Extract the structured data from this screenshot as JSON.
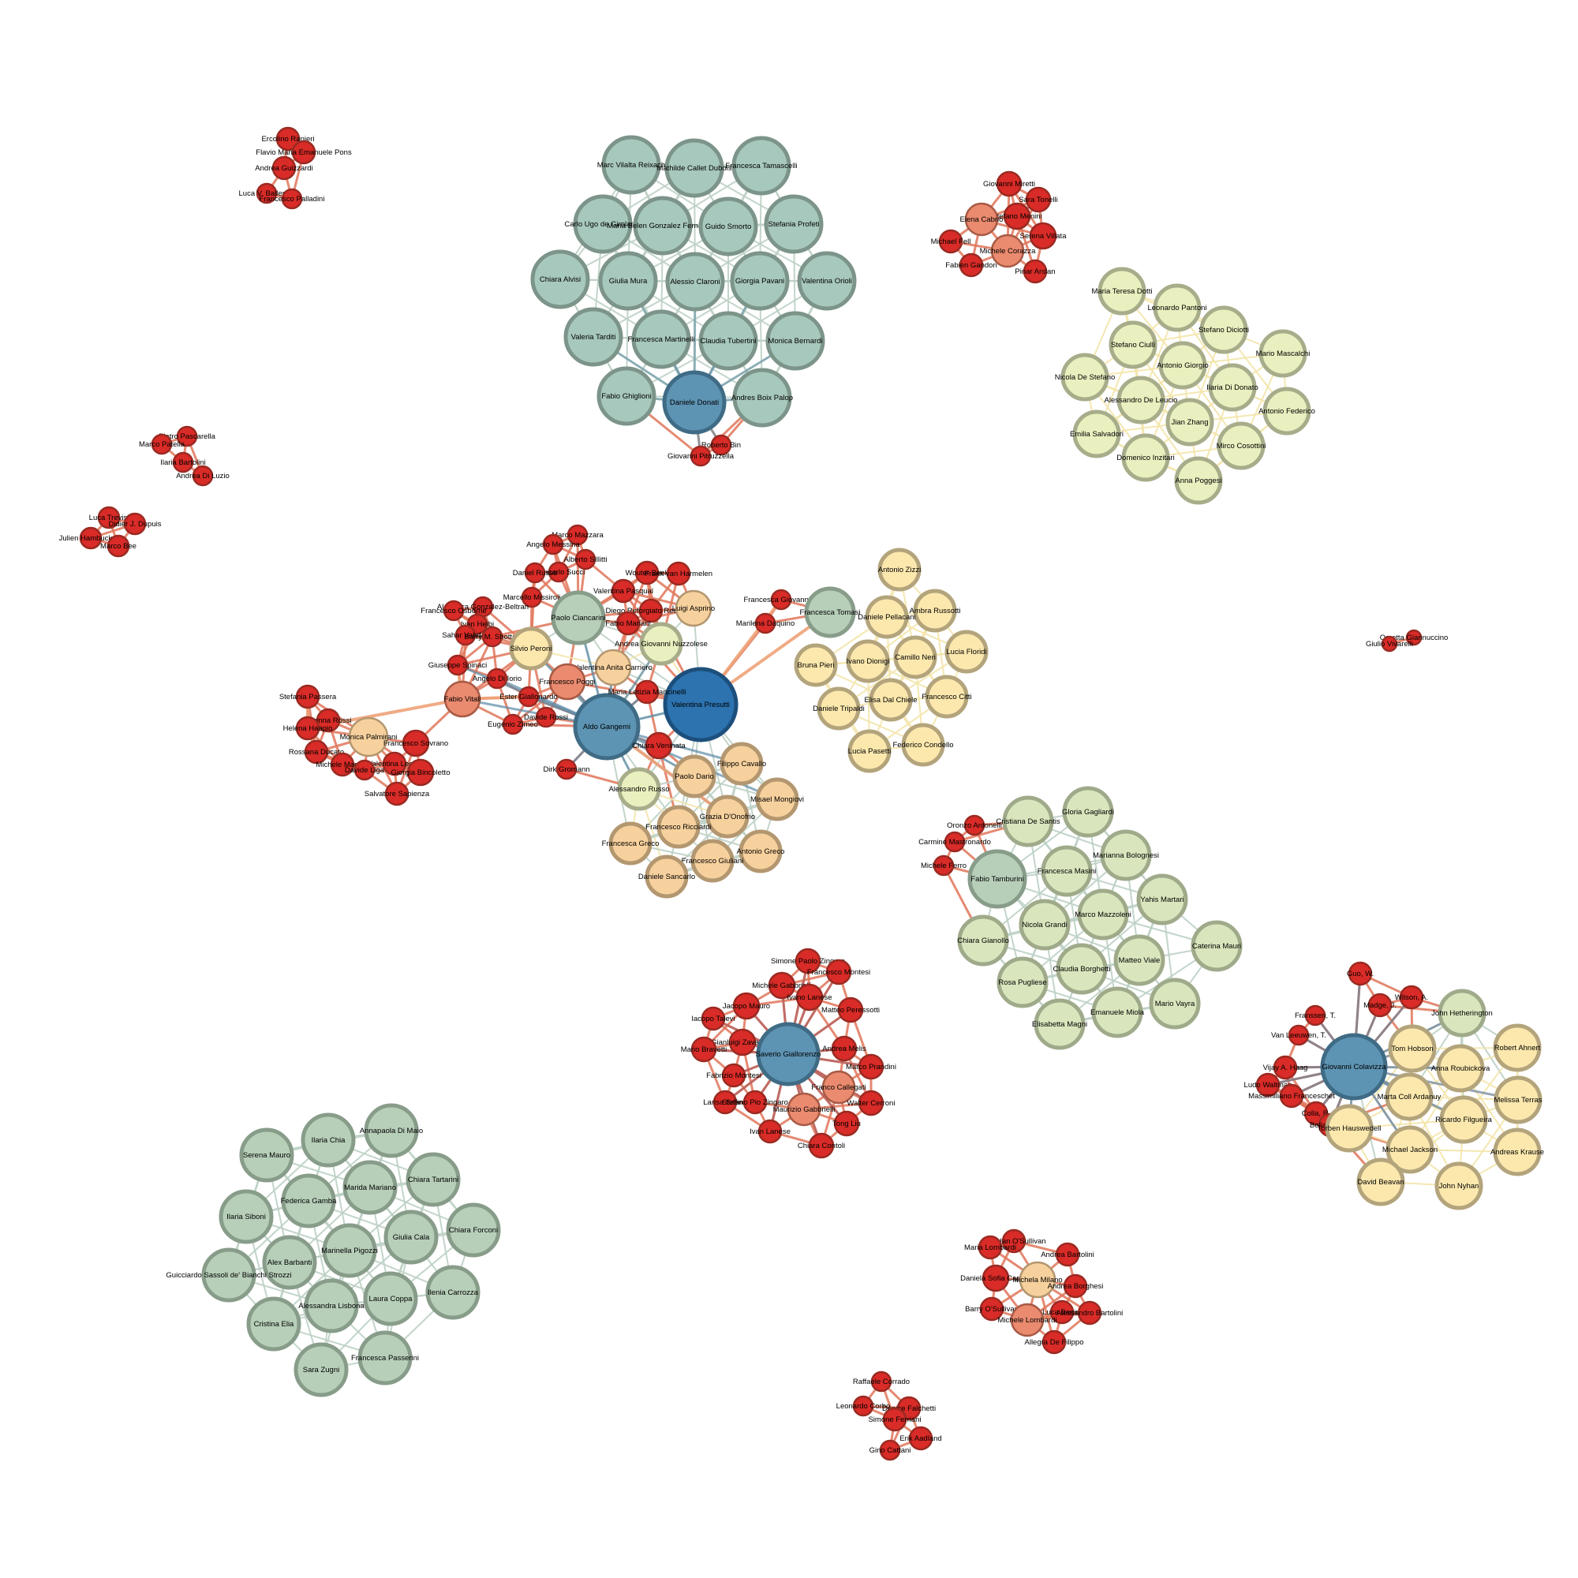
{
  "diagram": {
    "type": "co-authorship network",
    "palette": {
      "edge_default": "#cfdccf",
      "teal_fill": "#a7c8bc",
      "teal_stroke": "#7c9489",
      "sage_fill": "#b7cfb9",
      "sage_stroke": "#889c8a",
      "lime_fill": "#e9efbe",
      "lime_stroke": "#a7ad8a",
      "pale_green_fill": "#d9e6bd",
      "pale_green_stroke": "#9faa8a",
      "yellow_fill": "#fce8ad",
      "yellow_stroke": "#b3a47c",
      "peach_fill": "#f7d19d",
      "peach_stroke": "#b39770",
      "red_fill": "#d92b27",
      "red_stroke": "#9a2a22",
      "hub_fill": "#5d93b3",
      "hub_stroke": "#3f6b85",
      "hub_dark_fill": "#2c73b0",
      "hub_dark_stroke": "#1d4f7c"
    },
    "clusters": [
      {
        "id": "c1",
        "color": "red",
        "nodes": [
          [
            "Ercolino Ranieri"
          ],
          [
            "Flavio Maria Emanuele Pons"
          ],
          [
            "Andrea Guizzardi"
          ],
          [
            "Luca V. Ballestra"
          ],
          [
            "Francesco Palladini"
          ]
        ]
      },
      {
        "id": "c2",
        "color": "red",
        "nodes": [
          [
            "Pietro Pascarella"
          ],
          [
            "Marco Patella"
          ],
          [
            "Ilaria Bartolini"
          ],
          [
            "Andrea Di Luzio"
          ]
        ]
      },
      {
        "id": "c3",
        "color": "red",
        "nodes": [
          [
            "Luca Trevisi"
          ],
          [
            "Didier J. Dupuis"
          ],
          [
            "Julien Hambuckers"
          ],
          [
            "Marco Bee"
          ]
        ]
      },
      {
        "id": "c4",
        "color": "teal",
        "nodes": [
          [
            "Marc Vilalta Reixach"
          ],
          [
            "Mathilde Callet Dubois"
          ],
          [
            "Francesca Tamascelli"
          ],
          [
            "Carlo Ugo de Girolamo"
          ],
          [
            "Maria Belen Gonzalez Fernandez"
          ],
          [
            "Guido Smorto"
          ],
          [
            "Stefania Profeti"
          ],
          [
            "Chiara Alvisi"
          ],
          [
            "Giulia Mura"
          ],
          [
            "Alessio Claroni"
          ],
          [
            "Giorgia Pavani"
          ],
          [
            "Valentina Orioli"
          ],
          [
            "Valeria Tarditi"
          ],
          [
            "Francesca Martinelli"
          ],
          [
            "Claudia Tubertini"
          ],
          [
            "Monica Bernardi"
          ],
          [
            "Fabio Ghiglioni"
          ],
          [
            "Daniele Donati",
            "hub"
          ],
          [
            "Andres Boix Palop"
          ],
          [
            "Roberto Bin"
          ],
          [
            "Giovanni Pitruzzella"
          ]
        ]
      },
      {
        "id": "c5",
        "color": "red",
        "nodes": [
          [
            "Giovanni Miretti"
          ],
          [
            "Sara Tonelli"
          ],
          [
            "Stefano Menini"
          ],
          [
            "Elena Cabrio"
          ],
          [
            "Serena Villata"
          ],
          [
            "Michael Fell"
          ],
          [
            "Michele Corazza"
          ],
          [
            "Fabien Gandon"
          ],
          [
            "Pinar Arslan"
          ]
        ]
      },
      {
        "id": "c6",
        "color": "lime",
        "nodes": [
          [
            "Maria Teresa Dotti"
          ],
          [
            "Leonardo Pantoni"
          ],
          [
            "Stefano Diciotti"
          ],
          [
            "Stefano Ciulli"
          ],
          [
            "Mario Mascalchi"
          ],
          [
            "Nicola De Stefano"
          ],
          [
            "Antonio Giorgio"
          ],
          [
            "Ilaria Di Donato"
          ],
          [
            "Alessandro De Leucio"
          ],
          [
            "Antonio Federico"
          ],
          [
            "Emilia Salvadori"
          ],
          [
            "Jian Zhang"
          ],
          [
            "Mirco Cosottini"
          ],
          [
            "Domenico Inzitari"
          ],
          [
            "Anna Poggesi"
          ]
        ]
      },
      {
        "id": "c7",
        "color": "red",
        "nodes": [
          [
            "Orsetta Giannuccino"
          ],
          [
            "Giulio Vivarelli"
          ]
        ]
      },
      {
        "id": "c8",
        "color": "mixed",
        "nodes": [
          [
            "Marco Mazzara"
          ],
          [
            "Angelo Messina"
          ],
          [
            "Alberto Sillitti"
          ],
          [
            "Giancarlo Succi"
          ],
          [
            "Daniel Russo"
          ],
          [
            "Wouter Beek"
          ],
          [
            "Frank van Harmelen"
          ],
          [
            "Marcello Missiroli"
          ],
          [
            "Valentina Pasqual"
          ],
          [
            "Francesca Giovannetti"
          ],
          [
            "Alejandra Gonzalez-Beltran"
          ],
          [
            "Diego Reforgiato Recupero"
          ],
          [
            "Francesco Osborne"
          ],
          [
            "Ivan Heibi"
          ],
          [
            "Paolo Ciancarini"
          ],
          [
            "Fabio Mariani"
          ],
          [
            "Luigi Asprino"
          ],
          [
            "Marilena Daquino"
          ],
          [
            "Sahar Vahdati"
          ],
          [
            "Barry M. Shotton"
          ],
          [
            "Silvio Peroni"
          ],
          [
            "Andrea Giovanni Nuzzolese"
          ],
          [
            "Francesca Tomasi"
          ],
          [
            "Valentina Anita Carriero"
          ],
          [
            "Aldo Gangemi",
            "hub"
          ],
          [
            "Valentina Presutti",
            "hubdark"
          ],
          [
            "Giuseppe Spinaci"
          ],
          [
            "Angelo Di Iorio"
          ],
          [
            "Francesco Poggi"
          ],
          [
            "Ester Giallonardo"
          ],
          [
            "Fabio Vitali"
          ],
          [
            "Maria Letizia Mancinelli"
          ],
          [
            "Eugenio Zimeo"
          ],
          [
            "Davide Rossi"
          ],
          [
            "Chiara Veninata"
          ],
          [
            "Dirk Gromann"
          ],
          [
            "Filippo Cavallo"
          ],
          [
            "Paolo Dario"
          ],
          [
            "Alessandro Russo"
          ],
          [
            "Misael Mongiovi"
          ],
          [
            "Grazia D'Onofrio"
          ],
          [
            "Francesco Ricciardi"
          ],
          [
            "Francesca Greco"
          ],
          [
            "Antonio Greco"
          ],
          [
            "Francesco Giuliani"
          ],
          [
            "Daniele Sancarlo"
          ],
          [
            "Stefania Passera"
          ],
          [
            "Arianna Rossi"
          ],
          [
            "Helena Haapio"
          ],
          [
            "Monica Palmirani"
          ],
          [
            "Francesco Sovrano"
          ],
          [
            "Rossana Ducato"
          ],
          [
            "Valentina Leone"
          ],
          [
            "Michele Martoni"
          ],
          [
            "Davide Liga"
          ],
          [
            "Giorgia Bincoletto"
          ],
          [
            "Salvatore Sapienza"
          ]
        ]
      },
      {
        "id": "c9",
        "color": "yellow",
        "nodes": [
          [
            "Antonio Zizzi"
          ],
          [
            "Ambra Russotti"
          ],
          [
            "Daniele Pellacani"
          ],
          [
            "Lucia Floridi"
          ],
          [
            "Camillo Neri"
          ],
          [
            "Ivano Dionigi"
          ],
          [
            "Bruna Pieri"
          ],
          [
            "Elisa Dal Chiele"
          ],
          [
            "Francesco Citti"
          ],
          [
            "Daniele Tripaldi"
          ],
          [
            "Federico Condello"
          ],
          [
            "Lucia Pasetti"
          ]
        ]
      },
      {
        "id": "c10",
        "color": "pale_green",
        "nodes": [
          [
            "Gloria Gagliardi"
          ],
          [
            "Cristiana De Santis"
          ],
          [
            "Oronzo Antonelli"
          ],
          [
            "Carmine Mastronardo"
          ],
          [
            "Marianna Bolognesi"
          ],
          [
            "Michele Ferro"
          ],
          [
            "Francesca Masini"
          ],
          [
            "Fabio Tamburini"
          ],
          [
            "Yahis Martari"
          ],
          [
            "Marco Mazzoleni"
          ],
          [
            "Nicola Grandi"
          ],
          [
            "Chiara Gianollo"
          ],
          [
            "Caterina Mauri"
          ],
          [
            "Matteo Viale"
          ],
          [
            "Claudia Borghetti"
          ],
          [
            "Rosa Pugliese"
          ],
          [
            "Mario Vayra"
          ],
          [
            "Emanuele Miola"
          ],
          [
            "Elisabetta Magni"
          ]
        ]
      },
      {
        "id": "c11",
        "color": "red",
        "nodes": [
          [
            "Simone Paolo Zingaro"
          ],
          [
            "Francesco Montesi"
          ],
          [
            "Michele Gabbrielli"
          ],
          [
            "Ivano Lanese"
          ],
          [
            "Jacopo Mauro"
          ],
          [
            "Matteo Peressotti"
          ],
          [
            "Iacopo Talevi"
          ],
          [
            "Gianluigi Zavattaro"
          ],
          [
            "Mario Bravetti"
          ],
          [
            "Saverio Giallorenzo",
            "hub"
          ],
          [
            "Andrea Melis"
          ],
          [
            "Marco Prandini"
          ],
          [
            "Fabrizio Montesi"
          ],
          [
            "Franco Callegati"
          ],
          [
            "Larisa Safina"
          ],
          [
            "Stefano Pio Zingaro"
          ],
          [
            "Maurizio Gabbrielli"
          ],
          [
            "Walter Cerroni"
          ],
          [
            "Tong Liu"
          ],
          [
            "Ivan Lanese"
          ],
          [
            "Chiara Contoli"
          ]
        ]
      },
      {
        "id": "c12",
        "color": "mixed",
        "nodes": [
          [
            "Guo, W."
          ],
          [
            "Wilson, A."
          ],
          [
            "Madge, J."
          ],
          [
            "John Hetherington"
          ],
          [
            "Franssen, T."
          ],
          [
            "Van Leeuwen, T."
          ],
          [
            "Robert Ahnert"
          ],
          [
            "Tom Hobson"
          ],
          [
            "Vijay A. Haag"
          ],
          [
            "Giovanni Colavizza",
            "hub"
          ],
          [
            "Anna Roubickova"
          ],
          [
            "Ludo Waltman"
          ],
          [
            "Massimiliano Franceschet"
          ],
          [
            "Marta Coll Ardanuy"
          ],
          [
            "Melissa Terras"
          ],
          [
            "Colla, R."
          ],
          [
            "Bellavitis, C."
          ],
          [
            "Torben Hauswedell"
          ],
          [
            "Ricardo Filgueira"
          ],
          [
            "Michael Jackson"
          ],
          [
            "Andreas Krause"
          ],
          [
            "David Beavan"
          ],
          [
            "John Nyhan"
          ]
        ]
      },
      {
        "id": "c13",
        "color": "sage",
        "nodes": [
          [
            "Annapaola Di Maio"
          ],
          [
            "Ilaria Chia"
          ],
          [
            "Serena Mauro"
          ],
          [
            "Chiara Tartarini"
          ],
          [
            "Marida Mariano"
          ],
          [
            "Federica Gamba"
          ],
          [
            "Ilaria Siboni"
          ],
          [
            "Chiara Forconi"
          ],
          [
            "Giulia Cala"
          ],
          [
            "Marinella Pigozzi"
          ],
          [
            "Alex Barbanti"
          ],
          [
            "Guicciardo Sassoli de' Bianchi Strozzi"
          ],
          [
            "Ilenia Carrozza"
          ],
          [
            "Laura Coppa"
          ],
          [
            "Alessandra Lisbona"
          ],
          [
            "Cristina Elia"
          ],
          [
            "Francesca Passerini"
          ],
          [
            "Sara Zugni"
          ]
        ]
      },
      {
        "id": "c14",
        "color": "red",
        "nodes": [
          [
            "Brendan O'Sullivan"
          ],
          [
            "Maria Lombardi"
          ],
          [
            "Andrea Bartolini"
          ],
          [
            "Daniela Sofia Caputo"
          ],
          [
            "Michela Milano"
          ],
          [
            "Andrea Borghesi"
          ],
          [
            "Barry O'Sullivan"
          ],
          [
            "Luca Benini"
          ],
          [
            "Alessandro Bartolini"
          ],
          [
            "Michele Lombardi"
          ],
          [
            "Allegra De Filippo"
          ]
        ]
      },
      {
        "id": "c15",
        "color": "red",
        "nodes": [
          [
            "Raffaele Corrado"
          ],
          [
            "Leonardo Corbo"
          ],
          [
            "Denise Falchetti"
          ],
          [
            "Simone Ferriani"
          ],
          [
            "Erik Aadland"
          ],
          [
            "Gino Cattani"
          ]
        ]
      }
    ]
  }
}
